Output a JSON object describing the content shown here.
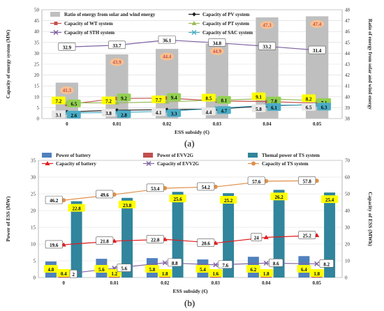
{
  "chart_data": [
    {
      "type": "bar",
      "panel_label": "(a)",
      "xlabel": "ESS subsidy (€)",
      "ylabel": "Capacity of energy system (MW)",
      "y2label": "Ratio of energy from solar and wind energy",
      "categories": [
        "0",
        "0.01",
        "0.02",
        "0.03",
        "0.04",
        "0.05"
      ],
      "ylim": [
        0,
        50
      ],
      "yticks": [
        "0",
        "5",
        "10",
        "15",
        "20",
        "25",
        "30",
        "35",
        "40",
        "45",
        "50"
      ],
      "y2lim": [
        38,
        48
      ],
      "y2ticks": [
        "38",
        "39",
        "40",
        "41",
        "42",
        "43",
        "44",
        "45",
        "46",
        "47",
        "48"
      ],
      "grid": true,
      "legend_position": "top",
      "bars": {
        "name": "Ratio of energy from solar and wind energy",
        "axis": "right",
        "values": [
          41.3,
          43.9,
          44.4,
          44.9,
          47.3,
          47.4
        ],
        "labels": [
          "41.3",
          "43.9",
          "44.4",
          "44.9",
          "47.3",
          "47.4"
        ],
        "color": "#bfbfbf"
      },
      "series": [
        {
          "name": "Capacity of PV system",
          "values": [
            3.1,
            3.8,
            4.1,
            4.4,
            5.8,
            6.5
          ],
          "labels": [
            "3.1",
            "3.8",
            "4.1",
            "4.4",
            "5.8",
            "6.5"
          ],
          "color": "#1f1f1f",
          "marker": "diamond",
          "label_bg": "#e8e8e8"
        },
        {
          "name": "Capacity of WT system",
          "values": [
            6.5,
            9.2,
            9.4,
            8.1,
            7.8,
            7.1
          ],
          "labels": [
            "6.5",
            "9.2",
            "9.4",
            "8.1",
            "7.8",
            "7.1"
          ],
          "color": "#c0504d",
          "marker": "square",
          "label_bg": "#92d050"
        },
        {
          "name": "Capacity of PT system",
          "values": [
            7.2,
            7.2,
            7.7,
            8.5,
            9.1,
            8.2
          ],
          "labels": [
            "7.2",
            "7.2",
            "7.7",
            "8.5",
            "9.1",
            "8.2"
          ],
          "color": "#9bbb59",
          "marker": "triangle",
          "label_bg": "#ffff00"
        },
        {
          "name": "Capacity of STH system",
          "values": [
            32.9,
            33.7,
            36.1,
            34.8,
            33.2,
            31.4
          ],
          "labels": [
            "32.9",
            "33.7",
            "36.1",
            "34.8",
            "33.2",
            "31.4"
          ],
          "color": "#8064a2",
          "marker": "x",
          "label_bg": "#ffffff"
        },
        {
          "name": "Capacity of SAC system",
          "values": [
            2.6,
            2.8,
            3.3,
            4.7,
            6.1,
            6.3
          ],
          "labels": [
            "2.6",
            "2.8",
            "3.3",
            "4.7",
            "6.1",
            "6.3"
          ],
          "color": "#4bacc6",
          "marker": "x",
          "label_bg": "#4bacc6"
        }
      ],
      "legend": [
        {
          "name": "Ratio of energy from solar and wind energy",
          "kind": "bar"
        },
        {
          "name": "Capacity of PV system",
          "kind": "line"
        },
        {
          "name": "Capacity of WT system",
          "kind": "line"
        },
        {
          "name": "Capacity of PT system",
          "kind": "line"
        },
        {
          "name": "Capacity of STH system",
          "kind": "line"
        },
        {
          "name": "Capacity of SAC system",
          "kind": "line"
        }
      ]
    },
    {
      "type": "bar",
      "panel_label": "(b)",
      "xlabel": "ESS subsidy (€)",
      "ylabel": "Power of ESS (MW)",
      "y2label": "Capacity of ESS (MWh)",
      "categories": [
        "0",
        "0.01",
        "0.02",
        "0.03",
        "0.04",
        "0.05"
      ],
      "ylim": [
        0,
        35
      ],
      "yticks": [
        "0",
        "5",
        "10",
        "15",
        "20",
        "25",
        "30",
        "35"
      ],
      "y2lim": [
        0,
        70
      ],
      "y2ticks": [
        "0",
        "10",
        "20",
        "30",
        "40",
        "50",
        "60",
        "70"
      ],
      "grid": true,
      "legend_position": "top",
      "bars": [
        {
          "name": "Power of battery",
          "axis": "left",
          "values": [
            4.8,
            5.6,
            5.8,
            5.4,
            6.2,
            6.4
          ],
          "labels": [
            "4.8",
            "5.6",
            "5.8",
            "5.4",
            "6.2",
            "6.4"
          ],
          "color": "#4f81bd",
          "label_bg": "#ffff00"
        },
        {
          "name": "Power of EVV2G",
          "axis": "left",
          "values": [
            0.4,
            1.2,
            1.8,
            1.6,
            1.8,
            1.8
          ],
          "labels": [
            "0.4",
            "1.2",
            "1.8",
            "1.6",
            "1.8",
            "1.8"
          ],
          "color": "#c0504d",
          "label_bg": "#ffff00"
        },
        {
          "name": "Themal power of TS system",
          "axis": "left",
          "values": [
            22.8,
            23.8,
            25.6,
            25.2,
            26.2,
            25.4
          ],
          "labels": [
            "22.8",
            "23.8",
            "25.6",
            "25.2",
            "26.2",
            "25.4"
          ],
          "color": "#31859c",
          "label_bg": "#ffff00"
        }
      ],
      "series": [
        {
          "name": "Capacity of battery",
          "axis": "right",
          "values": [
            19.6,
            21.8,
            22.8,
            20.6,
            24,
            25.2
          ],
          "labels": [
            "19.6",
            "21.8",
            "22.8",
            "20.6",
            "24",
            "25.2"
          ],
          "color": "#e31a1c",
          "marker": "triangle",
          "label_bg": "#ffffff"
        },
        {
          "name": "Capacity of EVV2G",
          "axis": "right",
          "values": [
            2,
            5.6,
            8.8,
            7.6,
            8.6,
            8.2
          ],
          "labels": [
            "2",
            "5.6",
            "8.8",
            "7.6",
            "8.6",
            "8.2"
          ],
          "color": "#8064a2",
          "marker": "x",
          "label_bg": "#ffffff"
        },
        {
          "name": "Capacity of TS system",
          "axis": "right",
          "values": [
            46.2,
            49.6,
            53.4,
            54.2,
            57.6,
            57.8
          ],
          "labels": [
            "46.2",
            "49.6",
            "53.4",
            "54.2",
            "57.6",
            "57.8"
          ],
          "color": "#e0904a",
          "marker": "circle",
          "label_bg": "#ffffff"
        }
      ],
      "legend": [
        {
          "name": "Power of battery",
          "kind": "bar"
        },
        {
          "name": "Power of EVV2G",
          "kind": "bar"
        },
        {
          "name": "Themal power of TS system",
          "kind": "bar"
        },
        {
          "name": "Capacity of battery",
          "kind": "line"
        },
        {
          "name": "Capacity of EVV2G",
          "kind": "line"
        },
        {
          "name": "Capacity of TS system",
          "kind": "line"
        }
      ]
    }
  ]
}
